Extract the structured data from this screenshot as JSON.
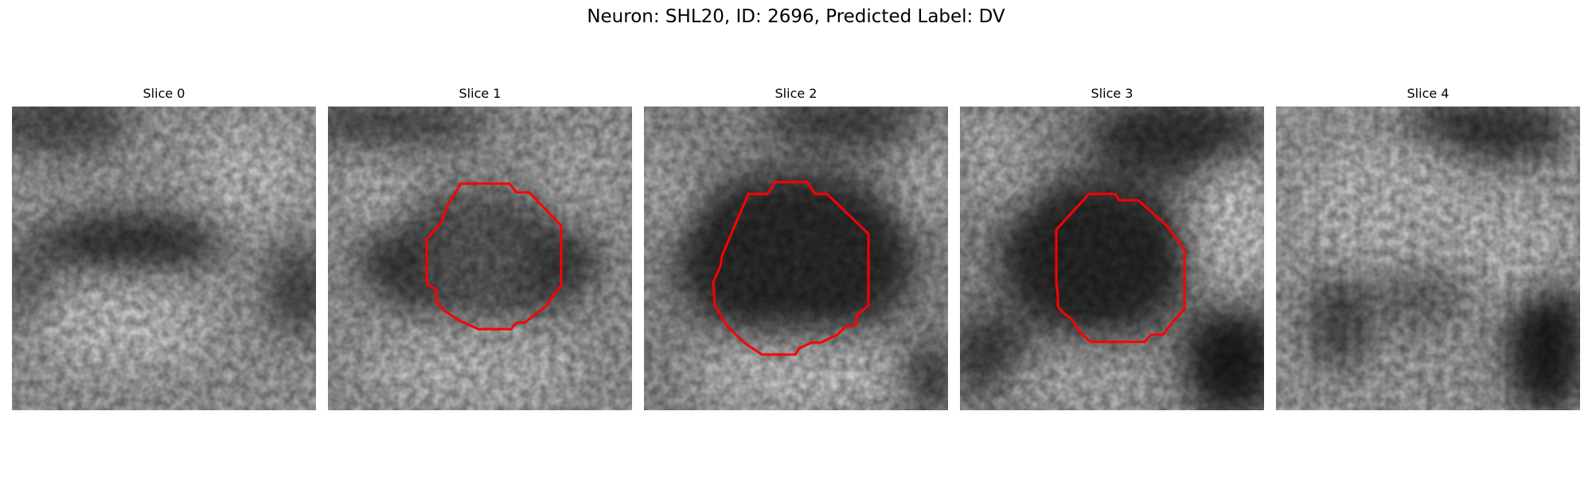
{
  "figure": {
    "title": "Neuron: SHL20, ID: 2696, Predicted Label: DV"
  },
  "panels": [
    {
      "title": "Slice 0",
      "has_contour": false
    },
    {
      "title": "Slice 1",
      "has_contour": true
    },
    {
      "title": "Slice 2",
      "has_contour": true
    },
    {
      "title": "Slice 3",
      "has_contour": true
    },
    {
      "title": "Slice 4",
      "has_contour": false
    }
  ],
  "colors": {
    "contour": "#ff0000",
    "background": "#ffffff"
  }
}
